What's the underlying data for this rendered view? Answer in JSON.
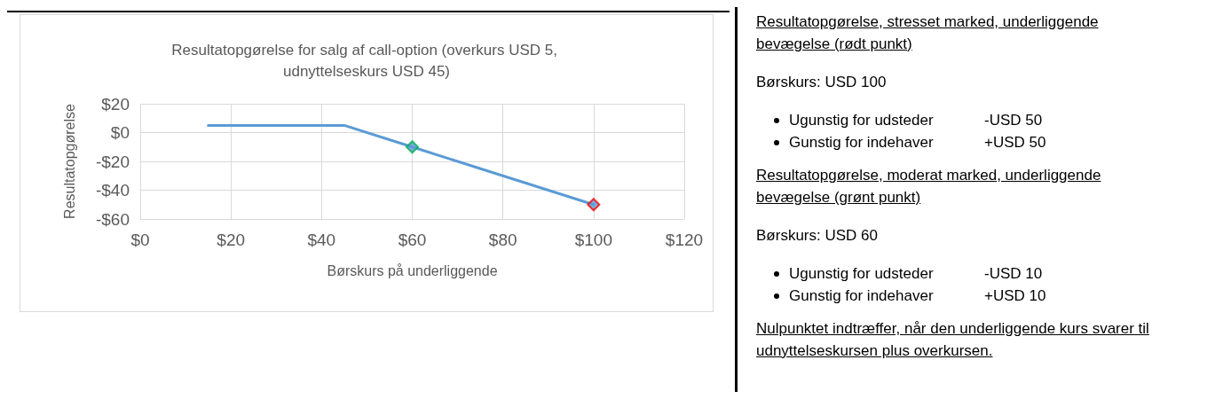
{
  "chart_data": [
    {
      "type": "line",
      "title": "Resultatopgørelse for salg af call-option (overkurs USD 5, udnyttelseskurs USD 45)",
      "xlabel": "Børskurs på underliggende",
      "ylabel": "Resultatopgørelse",
      "xlim": [
        0,
        120
      ],
      "xticks": [
        {
          "value": 0,
          "label": "$0"
        },
        {
          "value": 20,
          "label": "$20"
        },
        {
          "value": 40,
          "label": "$40"
        },
        {
          "value": 60,
          "label": "$60"
        },
        {
          "value": 80,
          "label": "$80"
        },
        {
          "value": 100,
          "label": "$100"
        },
        {
          "value": 120,
          "label": "$120"
        }
      ],
      "ylim": [
        -60,
        20
      ],
      "yticks": [
        {
          "value": -60,
          "label": "-$60"
        },
        {
          "value": -40,
          "label": "-$40"
        },
        {
          "value": -20,
          "label": "-$20"
        },
        {
          "value": 0,
          "label": "$0"
        },
        {
          "value": 20,
          "label": "$20"
        }
      ],
      "grid": true,
      "series": [
        {
          "type": "line",
          "color": "#5b9bd5",
          "x": [
            15,
            45,
            60,
            100
          ],
          "values": [
            5,
            5,
            -10,
            -50
          ],
          "marker": "none"
        },
        {
          "type": "scatter",
          "color": "#5b9bd5",
          "colors": [
            "#00b050",
            "#ff0000"
          ],
          "x": [
            60,
            100
          ],
          "values": [
            -10,
            -50
          ],
          "marker": "diamond"
        }
      ]
    },
    {
      "type": "other",
      "annotations": [
        "Resultatopgørelse, stresset marked, underliggende bevægelse (rødt punkt)",
        "Børskurs: USD 100",
        "Ugunstig for udsteder\t-USD 50",
        "Gunstig for indehaver\t+USD 50",
        "Resultatopgørelse, moderat marked, underliggende bevægelse (grønt punkt)",
        "Børskurs: USD 60",
        "Ugunstig for udsteder\t-USD 10",
        "Gunstig for indehaver\t+USD 10",
        "Nulpunktet indtræffer, når den underliggende kurs svarer til udnyttelseskursen plus overkursen."
      ]
    }
  ]
}
